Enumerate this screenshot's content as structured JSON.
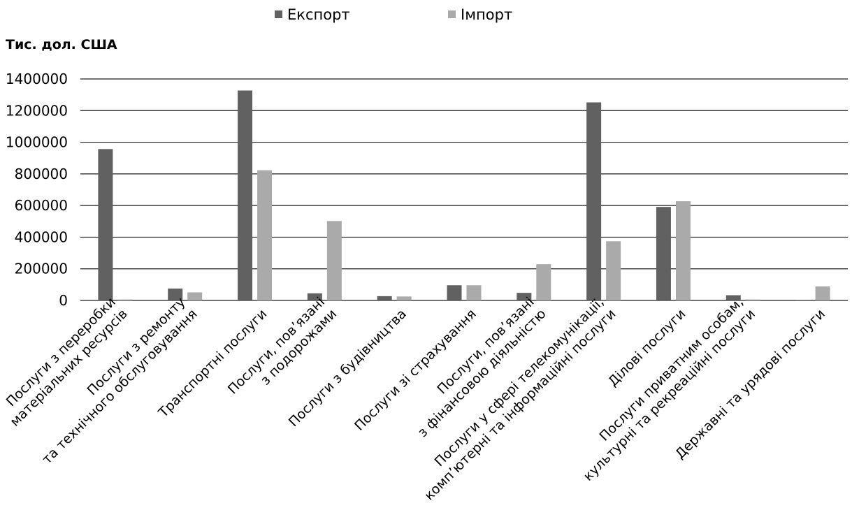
{
  "chart_data": {
    "type": "bar",
    "unit_label": "Тис. дол. США",
    "categories": [
      [
        "Послуги з переробки",
        "матеріальних ресурсів"
      ],
      [
        "Послуги з ремонту",
        "та технічного обслуговування"
      ],
      [
        "Транспортні послуги"
      ],
      [
        "Послуги, пов’язані",
        "з подорожами"
      ],
      [
        "Послуги з будівництва"
      ],
      [
        "Послуги зі страхування"
      ],
      [
        "Послуги, пов’язані",
        "з фінансовою діяльністю"
      ],
      [
        "Послуги у сфері телекомунікації,",
        "комп’ютерні та інформаційні послуги"
      ],
      [
        "Ділові послуги"
      ],
      [
        "Послуги приватним особам,",
        "культурні та рекреаційні послуги"
      ],
      [
        "Державні та урядові послуги"
      ]
    ],
    "series": [
      {
        "name": "Експорт",
        "color": "#616161",
        "values": [
          957000,
          75000,
          1327000,
          45000,
          27000,
          96000,
          48000,
          1252000,
          591000,
          33000,
          3000
        ]
      },
      {
        "name": "Імпорт",
        "color": "#aaaaab",
        "values": [
          6000,
          51000,
          823000,
          502000,
          25000,
          96000,
          229000,
          374000,
          627000,
          6000,
          89000
        ]
      }
    ],
    "ylim": [
      0,
      1400000
    ],
    "yticks": [
      "0",
      "200000",
      "400000",
      "600000",
      "800000",
      "1000000",
      "1200000",
      "1400000"
    ],
    "grid": true,
    "legend_position": "top-center"
  }
}
